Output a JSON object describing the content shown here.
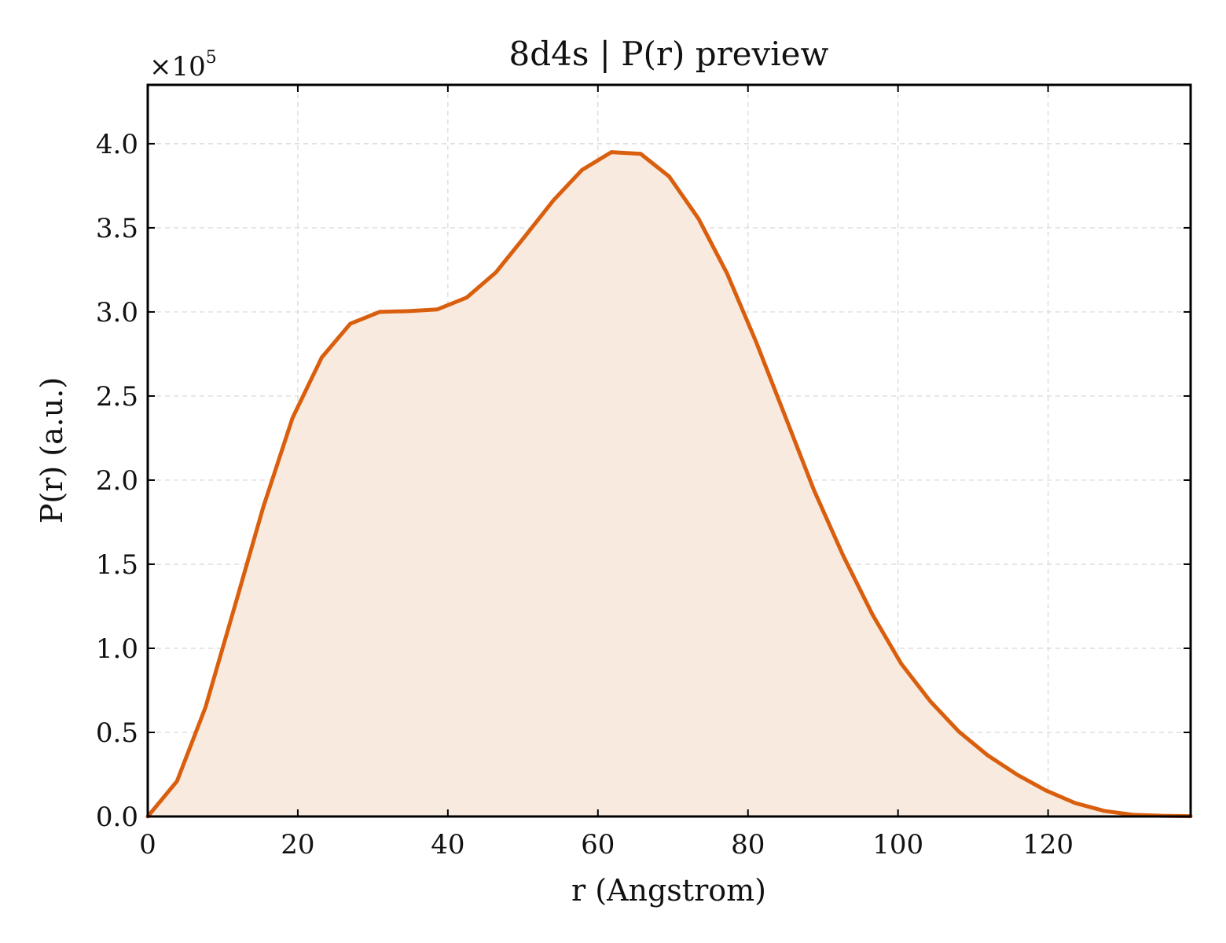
{
  "chart_data": {
    "type": "area",
    "title": "8d4s | P(r) preview",
    "xlabel": "r (Angstrom)",
    "ylabel": "P(r) (a.u.)",
    "y_multiplier_label": "×10",
    "y_multiplier_exponent": "5",
    "xlim": [
      0,
      139
    ],
    "ylim": [
      0,
      4.35
    ],
    "x_ticks": [
      0,
      20,
      40,
      60,
      80,
      100,
      120
    ],
    "x_tick_labels": [
      "0",
      "20",
      "40",
      "60",
      "80",
      "100",
      "120"
    ],
    "y_ticks": [
      0,
      0.5,
      1.0,
      1.5,
      2.0,
      2.5,
      3.0,
      3.5,
      4.0
    ],
    "y_tick_labels": [
      "0.0",
      "0.5",
      "1.0",
      "1.5",
      "2.0",
      "2.5",
      "3.0",
      "3.5",
      "4.0"
    ],
    "grid": true,
    "colors": {
      "line": "#d95f0e",
      "fill": "#f9eadf",
      "grid": "#d6d6d6"
    },
    "series": [
      {
        "x": [
          0,
          3.9,
          7.7,
          11.6,
          15.4,
          19.3,
          23.2,
          27.0,
          30.9,
          34.8,
          38.6,
          42.5,
          46.4,
          50.2,
          54.1,
          57.9,
          61.8,
          65.7,
          69.5,
          73.4,
          77.2,
          81.1,
          85.0,
          88.8,
          92.7,
          96.6,
          100.4,
          104.3,
          108.1,
          112.0,
          115.9,
          119.7,
          123.6,
          127.5,
          131.3,
          135.2,
          139.0
        ],
        "y": [
          0.0,
          0.21,
          0.65,
          1.25,
          1.84,
          2.37,
          2.73,
          2.93,
          3.0,
          3.005,
          3.015,
          3.085,
          3.235,
          3.445,
          3.665,
          3.845,
          3.95,
          3.94,
          3.805,
          3.555,
          3.23,
          2.82,
          2.375,
          1.94,
          1.55,
          1.2,
          0.91,
          0.685,
          0.505,
          0.362,
          0.248,
          0.155,
          0.08,
          0.033,
          0.01,
          0.004,
          0.002
        ]
      }
    ]
  }
}
